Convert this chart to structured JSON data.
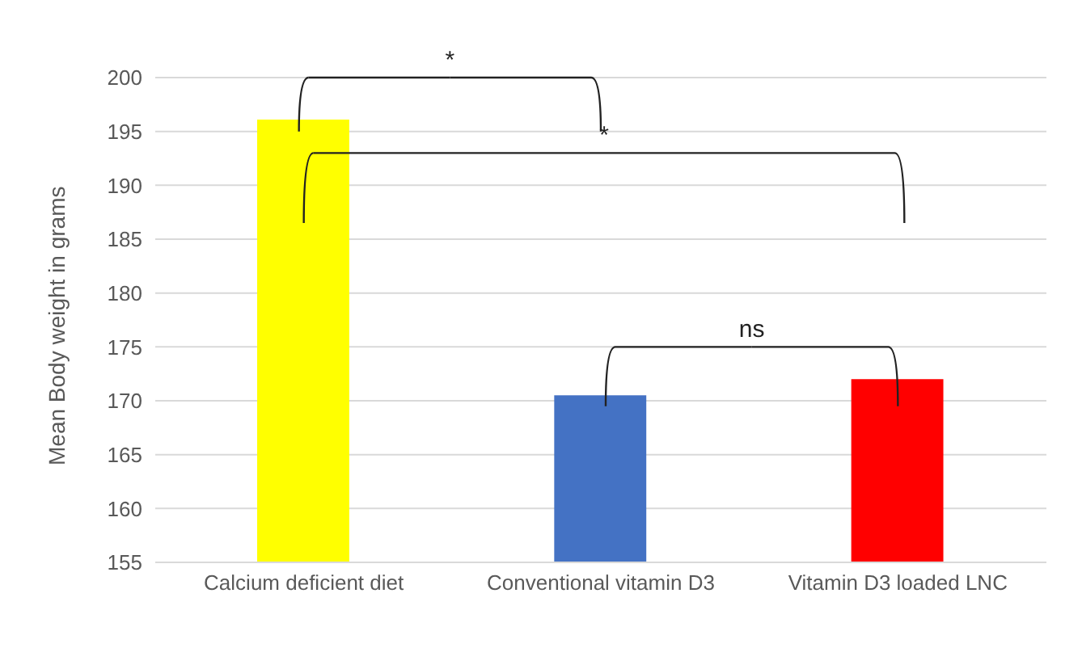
{
  "chart_data": {
    "type": "bar",
    "ylabel": "Mean Body weight in grams",
    "categories": [
      "Calcium deficient diet",
      "Conventional vitamin D3",
      "Vitamin D3 loaded LNC"
    ],
    "values": [
      196.1,
      170.5,
      172.0
    ],
    "colors": [
      "#ffff00",
      "#4472c4",
      "#ff0000"
    ],
    "ylim": [
      155,
      200
    ],
    "yticks": [
      155,
      160,
      165,
      170,
      175,
      180,
      185,
      190,
      195,
      200
    ],
    "grid": "y",
    "annotations": [
      "*",
      "*",
      "ns"
    ]
  }
}
